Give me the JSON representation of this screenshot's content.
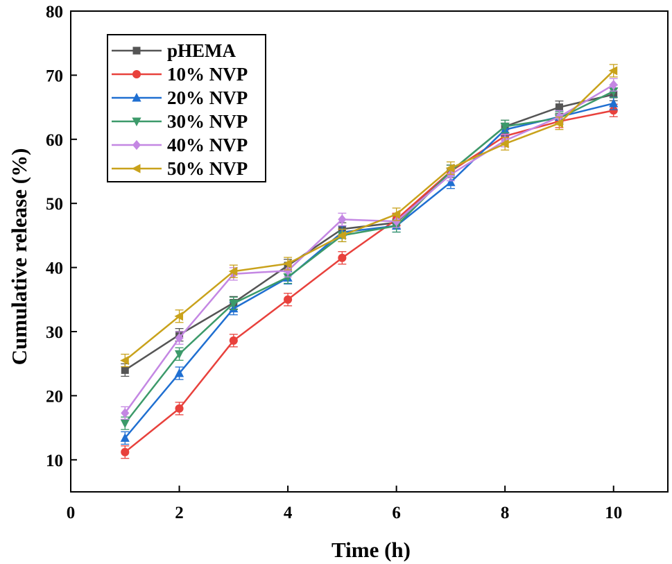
{
  "chart_data": {
    "type": "line",
    "title": "",
    "xlabel": "Time (h)",
    "ylabel": "Cumulative release (%)",
    "xlim": [
      0,
      11
    ],
    "ylim": [
      5,
      80
    ],
    "xticks": [
      0,
      2,
      4,
      6,
      8,
      10
    ],
    "xtick_labels": [
      "0",
      "2",
      "4",
      "6",
      "8",
      "10"
    ],
    "yticks": [
      10,
      20,
      30,
      40,
      50,
      60,
      70,
      80
    ],
    "ytick_labels": [
      "10",
      "20",
      "30",
      "40",
      "50",
      "60",
      "70",
      "80"
    ],
    "grid": false,
    "legend_position": "top-left",
    "x": [
      1,
      2,
      3,
      4,
      5,
      6,
      7,
      8,
      9,
      10
    ],
    "series": [
      {
        "name": "pHEMA",
        "color": "#555555",
        "marker": "square",
        "values": [
          24.0,
          29.5,
          34.5,
          40.3,
          46.0,
          47.0,
          55.0,
          62.0,
          65.0,
          67.0
        ]
      },
      {
        "name": "10% NVP",
        "color": "#e8413c",
        "marker": "circle",
        "values": [
          11.2,
          18.0,
          28.6,
          35.0,
          41.5,
          47.5,
          55.0,
          60.5,
          62.8,
          64.5
        ]
      },
      {
        "name": "20% NVP",
        "color": "#1f6fd1",
        "marker": "triangle-up",
        "values": [
          13.4,
          23.5,
          33.6,
          38.4,
          45.5,
          46.5,
          53.3,
          61.5,
          63.5,
          65.6
        ]
      },
      {
        "name": "30% NVP",
        "color": "#3c9a6a",
        "marker": "triangle-down",
        "values": [
          15.7,
          26.5,
          34.4,
          38.5,
          45.0,
          46.5,
          55.0,
          62.0,
          63.3,
          67.5
        ]
      },
      {
        "name": "40% NVP",
        "color": "#c487e3",
        "marker": "diamond",
        "values": [
          17.3,
          29.0,
          39.0,
          39.5,
          47.5,
          47.2,
          54.5,
          59.8,
          63.5,
          68.5
        ]
      },
      {
        "name": "50% NVP",
        "color": "#c9a21b",
        "marker": "triangle-left",
        "values": [
          25.5,
          32.4,
          39.4,
          40.6,
          45.0,
          48.3,
          55.5,
          59.3,
          62.5,
          70.7
        ]
      }
    ]
  }
}
